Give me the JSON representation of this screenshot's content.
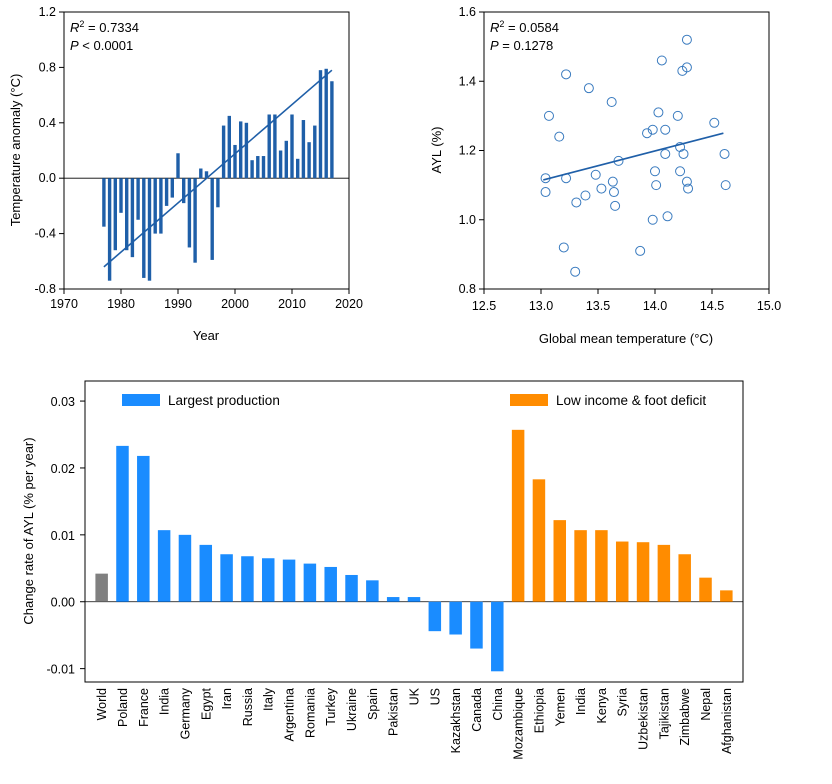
{
  "chart_data": [
    {
      "id": "anomaly",
      "type": "bar",
      "xlabel": "Year",
      "ylabel": "Temperature anomaly (°C)",
      "xlim": [
        1970,
        2020
      ],
      "ylim": [
        -0.8,
        1.2
      ],
      "xticks": [
        1970,
        1980,
        1990,
        2000,
        2010,
        2020
      ],
      "yticks": [
        -0.8,
        -0.4,
        0.0,
        0.4,
        0.8,
        1.2
      ],
      "ytick_labels": [
        "-0.8",
        "-0.4",
        "0.0",
        "0.4",
        "0.8",
        "1.2"
      ],
      "bar_color": "#1f5fa8",
      "stats": {
        "r2_label": "R",
        "r2_value": " = 0.7334",
        "p_label": "P",
        "p_value": " < 0.0001"
      },
      "x": [
        1977,
        1978,
        1979,
        1980,
        1981,
        1982,
        1983,
        1984,
        1985,
        1986,
        1987,
        1988,
        1989,
        1990,
        1991,
        1992,
        1993,
        1994,
        1995,
        1996,
        1997,
        1998,
        1999,
        2000,
        2001,
        2002,
        2003,
        2004,
        2005,
        2006,
        2007,
        2008,
        2009,
        2010,
        2011,
        2012,
        2013,
        2014,
        2015,
        2016,
        2017
      ],
      "values": [
        -0.35,
        -0.74,
        -0.52,
        -0.25,
        -0.52,
        -0.57,
        -0.3,
        -0.72,
        -0.74,
        -0.4,
        -0.4,
        -0.2,
        -0.14,
        0.18,
        -0.18,
        -0.5,
        -0.61,
        0.07,
        0.05,
        -0.59,
        -0.21,
        0.38,
        0.45,
        0.24,
        0.41,
        0.4,
        0.13,
        0.16,
        0.16,
        0.46,
        0.46,
        0.2,
        0.27,
        0.46,
        0.14,
        0.42,
        0.26,
        0.38,
        0.78,
        0.79,
        0.7
      ],
      "trend": {
        "x": [
          1977,
          2017
        ],
        "y": [
          -0.64,
          0.78
        ]
      }
    },
    {
      "id": "ayl_scatter",
      "type": "scatter",
      "xlabel": "Global mean temperature (°C)",
      "ylabel": "AYL (%)",
      "xlim": [
        12.5,
        15.0
      ],
      "ylim": [
        0.8,
        1.6
      ],
      "xticks": [
        12.5,
        13.0,
        13.5,
        14.0,
        14.5,
        15.0
      ],
      "xtick_labels": [
        "12.5",
        "13.0",
        "13.5",
        "14.0",
        "14.5",
        "15.0"
      ],
      "yticks": [
        0.8,
        1.0,
        1.2,
        1.4,
        1.6
      ],
      "ytick_labels": [
        "0.8",
        "1.0",
        "1.2",
        "1.4",
        "1.6"
      ],
      "marker_color": "#3a7bbf",
      "stats": {
        "r2_label": "R",
        "r2_value": " = 0.0584",
        "p_label": "P",
        "p_value": " = 0.1278"
      },
      "points": [
        [
          13.22,
          1.42
        ],
        [
          13.42,
          1.38
        ],
        [
          13.07,
          1.3
        ],
        [
          13.62,
          1.34
        ],
        [
          14.06,
          1.46
        ],
        [
          14.28,
          1.52
        ],
        [
          14.28,
          1.44
        ],
        [
          14.24,
          1.43
        ],
        [
          14.03,
          1.31
        ],
        [
          14.2,
          1.3
        ],
        [
          13.16,
          1.24
        ],
        [
          13.93,
          1.25
        ],
        [
          13.98,
          1.26
        ],
        [
          14.09,
          1.26
        ],
        [
          14.52,
          1.28
        ],
        [
          14.22,
          1.21
        ],
        [
          14.25,
          1.19
        ],
        [
          14.61,
          1.19
        ],
        [
          14.09,
          1.19
        ],
        [
          13.68,
          1.17
        ],
        [
          13.04,
          1.12
        ],
        [
          13.22,
          1.12
        ],
        [
          13.48,
          1.13
        ],
        [
          13.63,
          1.11
        ],
        [
          14.0,
          1.14
        ],
        [
          14.22,
          1.14
        ],
        [
          14.28,
          1.11
        ],
        [
          14.62,
          1.1
        ],
        [
          13.53,
          1.09
        ],
        [
          13.64,
          1.08
        ],
        [
          13.04,
          1.08
        ],
        [
          13.39,
          1.07
        ],
        [
          13.31,
          1.05
        ],
        [
          14.01,
          1.1
        ],
        [
          14.29,
          1.09
        ],
        [
          13.65,
          1.04
        ],
        [
          13.98,
          1.0
        ],
        [
          14.11,
          1.01
        ],
        [
          13.2,
          0.92
        ],
        [
          13.87,
          0.91
        ],
        [
          13.3,
          0.85
        ]
      ],
      "trend": {
        "x": [
          13.02,
          14.6
        ],
        "y": [
          1.115,
          1.25
        ]
      }
    },
    {
      "id": "change_rate",
      "type": "bar",
      "ylabel": "Change rate of AYL (% per year)",
      "ylim": [
        -0.012,
        0.033
      ],
      "yticks": [
        -0.01,
        0.0,
        0.01,
        0.02,
        0.03
      ],
      "ytick_labels": [
        "-0.01",
        "0.00",
        "0.01",
        "0.02",
        "0.03"
      ],
      "legend": [
        {
          "label": "Largest production",
          "color": "#1a8cff"
        },
        {
          "label": "Low income & foot deficit",
          "color": "#ff8c00"
        }
      ],
      "world_color": "#808080",
      "categories": [
        "World",
        "Poland",
        "France",
        "India",
        "Germany",
        "Egypt",
        "Iran",
        "Russia",
        "Italy",
        "Argentina",
        "Romania",
        "Turkey",
        "Ukraine",
        "Spain",
        "Pakistan",
        "UK",
        "US",
        "Kazakhstan",
        "Canada",
        "China",
        "Mozambique",
        "Ethiopia",
        "Yemen",
        "India",
        "Kenya",
        "Syria",
        "Uzbekistan",
        "Tajikistan",
        "Zimbabwe",
        "Nepal",
        "Afghanistan"
      ],
      "groups": [
        "world",
        "prod",
        "prod",
        "prod",
        "prod",
        "prod",
        "prod",
        "prod",
        "prod",
        "prod",
        "prod",
        "prod",
        "prod",
        "prod",
        "prod",
        "prod",
        "prod",
        "prod",
        "prod",
        "prod",
        "low",
        "low",
        "low",
        "low",
        "low",
        "low",
        "low",
        "low",
        "low",
        "low",
        "low"
      ],
      "values": [
        0.0042,
        0.0233,
        0.0218,
        0.0107,
        0.01,
        0.0085,
        0.0071,
        0.0068,
        0.0065,
        0.0063,
        0.0057,
        0.0052,
        0.004,
        0.0032,
        0.0007,
        0.0007,
        -0.0044,
        -0.0049,
        -0.007,
        -0.0104,
        0.0257,
        0.0183,
        0.0122,
        0.0107,
        0.0107,
        0.009,
        0.0089,
        0.0085,
        0.0071,
        0.0036,
        0.0017
      ]
    }
  ]
}
